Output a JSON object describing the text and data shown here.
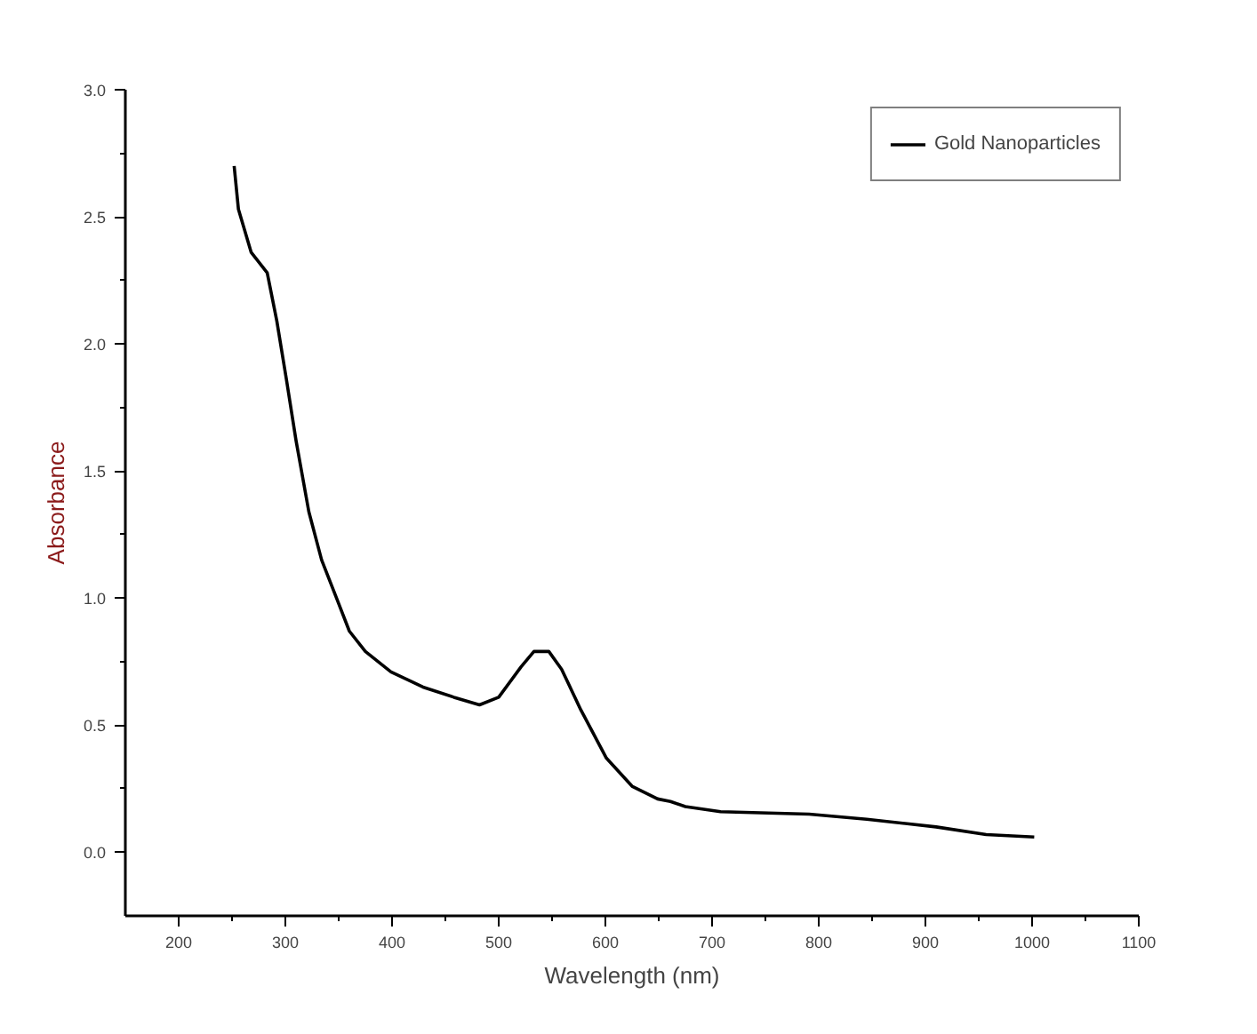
{
  "chart_data": {
    "type": "line",
    "xlabel": "Wavelength (nm)",
    "ylabel": "Absorbance",
    "xlim": [
      150,
      1100
    ],
    "ylim": [
      -0.25,
      3.0
    ],
    "xticks": [
      200,
      300,
      400,
      500,
      600,
      700,
      800,
      900,
      1000,
      1100
    ],
    "yticks": [
      {
        "value": 0,
        "label": "0.0"
      },
      {
        "value": 0.5,
        "label": "0.5"
      },
      {
        "value": 1,
        "label": "1.0"
      },
      {
        "value": 1.5,
        "label": "1.5"
      },
      {
        "value": 2,
        "label": "2.0"
      },
      {
        "value": 2.5,
        "label": "2.5"
      },
      {
        "value": 3,
        "label": "3.0"
      }
    ],
    "grid": false,
    "legend": "top right",
    "marker": "none",
    "line_style": "solid",
    "series": [
      {
        "name": "Gold Nanoparticles",
        "color": "#000000",
        "x": [
          252,
          256,
          268,
          283,
          292,
          301,
          310,
          322,
          334,
          348,
          360,
          375,
          399,
          429,
          458,
          482,
          500,
          521,
          533,
          547,
          559,
          577,
          601,
          625,
          649,
          661,
          675,
          708,
          791,
          845,
          910,
          957,
          1002
        ],
        "values": [
          2.7,
          2.53,
          2.36,
          2.28,
          2.09,
          1.86,
          1.62,
          1.34,
          1.15,
          1.0,
          0.87,
          0.79,
          0.71,
          0.65,
          0.61,
          0.58,
          0.61,
          0.73,
          0.79,
          0.79,
          0.72,
          0.56,
          0.37,
          0.26,
          0.21,
          0.2,
          0.18,
          0.16,
          0.15,
          0.13,
          0.1,
          0.07,
          0.06
        ]
      }
    ]
  }
}
